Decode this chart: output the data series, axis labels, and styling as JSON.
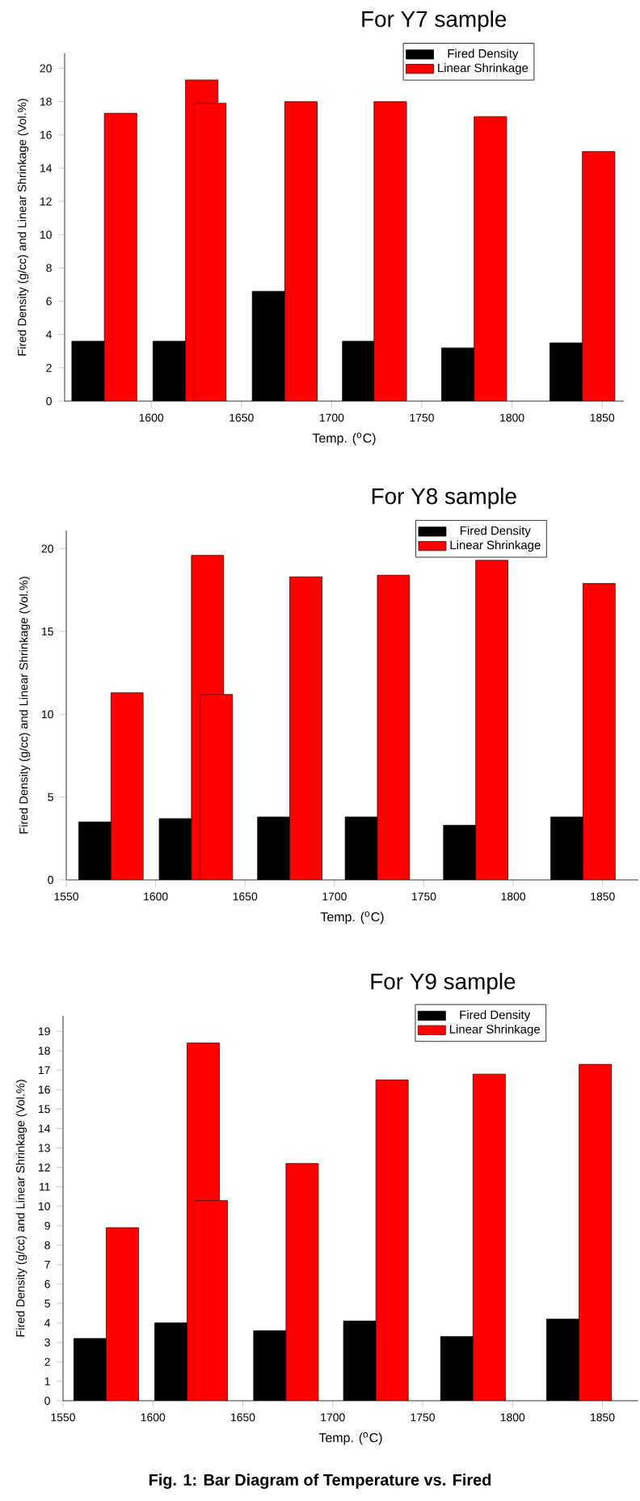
{
  "chart_data": [
    {
      "type": "bar",
      "title": "For Y7 sample",
      "xlabel": "Temp. ($^{o}$C)",
      "ylabel": "Fired Density (g/cc) and  Linear Shrinkage (Vol.%)",
      "xlim": [
        1552,
        1862
      ],
      "ylim": [
        0,
        20.9
      ],
      "xticks": [
        1600,
        1650,
        1700,
        1750,
        1800,
        1850
      ],
      "yticks": [
        0,
        2,
        4,
        6,
        8,
        10,
        12,
        14,
        16,
        18,
        20
      ],
      "legend": "top right",
      "series": [
        {
          "name": "Fired Density",
          "color": "#000000",
          "x": [
            1565,
            1610,
            1665,
            1715,
            1770,
            1830
          ],
          "values": [
            3.6,
            3.6,
            6.6,
            3.6,
            3.2,
            3.5
          ]
        },
        {
          "name": "Linear Shrinkage",
          "color": "#ff0000",
          "x": [
            1583,
            1628,
            1683,
            1732.5,
            1788,
            1848
          ],
          "values": [
            17.3,
            19.3,
            18.0,
            18.0,
            17.1,
            15.0
          ]
        },
        {
          "color": "#ff0000",
          "x": [
            1632.5
          ],
          "values": [
            17.9
          ]
        }
      ]
    },
    {
      "type": "bar",
      "title": "For Y8 sample",
      "xlabel": "Temp. ($^{o}$C)",
      "ylabel": "Fired Density (g/cc) and  Linear Shrinkage (Vol.%)",
      "xlim": [
        1550,
        1870
      ],
      "ylim": [
        0,
        21.1
      ],
      "xticks": [
        1550,
        1600,
        1650,
        1700,
        1750,
        1800,
        1850
      ],
      "yticks": [
        0,
        5,
        10,
        15,
        20
      ],
      "legend": "top right",
      "series": [
        {
          "name": "Fired Density",
          "color": "#000000",
          "x": [
            1566,
            1611,
            1666,
            1715,
            1770,
            1830
          ],
          "values": [
            3.5,
            3.7,
            3.8,
            3.8,
            3.3,
            3.8
          ]
        },
        {
          "name": "Linear Shrinkage",
          "color": "#ff0000",
          "x": [
            1584,
            1629,
            1684,
            1733,
            1788,
            1848
          ],
          "values": [
            11.3,
            19.6,
            18.3,
            18.4,
            19.3,
            17.9
          ]
        },
        {
          "color": "#ff0000",
          "x": [
            1634
          ],
          "values": [
            11.2
          ]
        }
      ]
    },
    {
      "type": "bar",
      "title": "For Y9 sample",
      "xlabel": "Temp. ($^{o}$C)",
      "ylabel": "Fired Density (g/cc) and  Linear Shrinkage (Vol.%)",
      "xlim": [
        1550,
        1870
      ],
      "ylim": [
        0,
        19.8
      ],
      "xticks": [
        1550,
        1600,
        1650,
        1700,
        1750,
        1800,
        1850
      ],
      "yticks": [
        0,
        1,
        2,
        3,
        4,
        5,
        6,
        7,
        8,
        9,
        10,
        11,
        12,
        13,
        14,
        15,
        16,
        17,
        18,
        19
      ],
      "legend": "top right",
      "annotations": [
        "Fig. 1: Bar Diagram of Temperature vs. Fired"
      ],
      "series": [
        {
          "name": "Fired Density",
          "color": "#000000",
          "x": [
            1565,
            1610,
            1665,
            1715,
            1769,
            1828
          ],
          "values": [
            3.2,
            4.0,
            3.6,
            4.1,
            3.3,
            4.2
          ]
        },
        {
          "name": "Linear Shrinkage",
          "color": "#ff0000",
          "x": [
            1583,
            1628,
            1683,
            1733,
            1787,
            1846
          ],
          "values": [
            8.9,
            18.4,
            12.2,
            16.5,
            16.8,
            17.3
          ]
        },
        {
          "color": "#ff0000",
          "x": [
            1632.5
          ],
          "values": [
            10.3
          ]
        }
      ]
    }
  ]
}
